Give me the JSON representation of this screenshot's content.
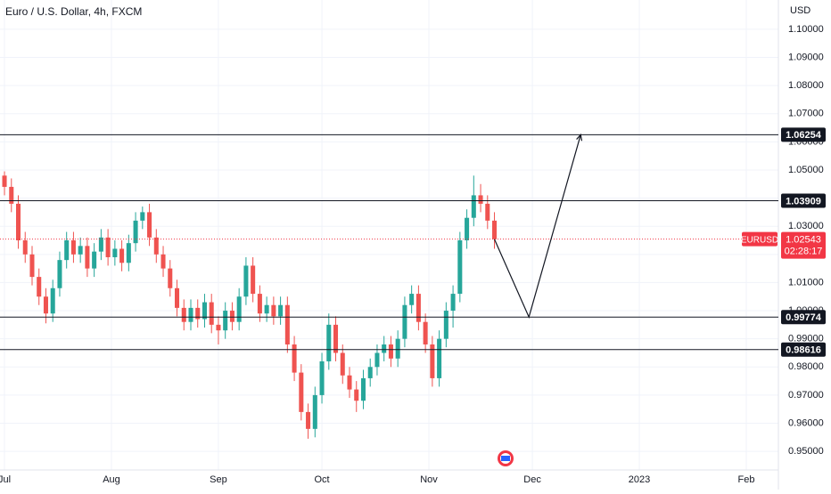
{
  "chart_data": {
    "type": "candlestick",
    "title": "Euro / U.S. Dollar, 4h, FXCM",
    "currency": "USD",
    "symbol": "EURUSD",
    "countdown": "02:28:17",
    "last_price": 1.02543,
    "up_color": "#26a69a",
    "down_color": "#ef5350",
    "grid": true,
    "xlim": [
      -1.3,
      224.3
    ],
    "ylim": [
      0.9434,
      1.1104
    ],
    "xticks": [
      {
        "value": 0,
        "label": "Jul"
      },
      {
        "value": 31,
        "label": "Aug"
      },
      {
        "value": 62,
        "label": "Sep"
      },
      {
        "value": 92,
        "label": "Oct"
      },
      {
        "value": 123,
        "label": "Nov"
      },
      {
        "value": 153,
        "label": "Dec"
      },
      {
        "value": 184,
        "label": "2023"
      },
      {
        "value": 215,
        "label": "Feb"
      }
    ],
    "yticks": [
      {
        "value": 0.95,
        "label": "0.95000"
      },
      {
        "value": 0.96,
        "label": "0.96000"
      },
      {
        "value": 0.97,
        "label": "0.97000"
      },
      {
        "value": 0.98,
        "label": "0.98000"
      },
      {
        "value": 0.99,
        "label": "0.99000"
      },
      {
        "value": 1.0,
        "label": "1.00000"
      },
      {
        "value": 1.01,
        "label": "1.01000"
      },
      {
        "value": 1.02,
        "label": "1.02000"
      },
      {
        "value": 1.03,
        "label": "1.03000"
      },
      {
        "value": 1.04,
        "label": "1.04000"
      },
      {
        "value": 1.05,
        "label": "1.05000"
      },
      {
        "value": 1.06,
        "label": "1.06000"
      },
      {
        "value": 1.07,
        "label": "1.07000"
      },
      {
        "value": 1.08,
        "label": "1.08000"
      },
      {
        "value": 1.09,
        "label": "1.09000"
      },
      {
        "value": 1.1,
        "label": "1.10000"
      }
    ],
    "levels": [
      1.06254,
      1.03909,
      0.99774,
      0.98616
    ],
    "projection": {
      "x": [
        142,
        152,
        167
      ],
      "values": [
        1.0254,
        0.99774,
        1.06254
      ]
    },
    "x": [
      0,
      2,
      4,
      6,
      8,
      10,
      12,
      14,
      16,
      18,
      20,
      22,
      24,
      26,
      28,
      30,
      32,
      34,
      36,
      38,
      40,
      42,
      44,
      46,
      48,
      50,
      52,
      54,
      56,
      58,
      60,
      62,
      64,
      66,
      68,
      70,
      72,
      74,
      76,
      78,
      80,
      82,
      84,
      86,
      88,
      90,
      92,
      94,
      96,
      98,
      100,
      102,
      104,
      106,
      108,
      110,
      112,
      114,
      116,
      118,
      120,
      122,
      124,
      126,
      128,
      130,
      132,
      134,
      136,
      138,
      140,
      142
    ],
    "open": [
      1.048,
      1.044,
      1.038,
      1.025,
      1.02,
      1.012,
      1.005,
      0.999,
      1.008,
      1.018,
      1.025,
      1.02,
      1.023,
      1.015,
      1.021,
      1.026,
      1.019,
      1.022,
      1.017,
      1.024,
      1.032,
      1.035,
      1.026,
      1.02,
      1.015,
      1.008,
      1.001,
      0.996,
      1.001,
      0.997,
      1.003,
      0.995,
      0.993,
      1.0,
      0.996,
      1.005,
      1.016,
      1.006,
      0.999,
      1.002,
      0.998,
      1.002,
      0.988,
      0.978,
      0.964,
      0.958,
      0.97,
      0.982,
      0.995,
      0.985,
      0.977,
      0.972,
      0.968,
      0.976,
      0.98,
      0.985,
      0.988,
      0.983,
      0.99,
      1.002,
      1.006,
      0.996,
      0.988,
      0.976,
      0.99,
      1.0,
      1.006,
      1.025,
      1.033,
      1.041,
      1.038,
      1.032
    ],
    "high": [
      1.0495,
      1.047,
      1.041,
      1.028,
      1.023,
      1.015,
      1.008,
      1.011,
      1.021,
      1.028,
      1.028,
      1.026,
      1.026,
      1.024,
      1.029,
      1.029,
      1.025,
      1.025,
      1.027,
      1.035,
      1.037,
      1.038,
      1.029,
      1.023,
      1.018,
      1.011,
      1.004,
      1.004,
      1.004,
      1.006,
      1.006,
      0.998,
      1.003,
      1.003,
      1.008,
      1.019,
      1.019,
      1.009,
      1.005,
      1.005,
      1.005,
      1.005,
      0.991,
      0.981,
      0.967,
      0.973,
      0.985,
      0.999,
      0.998,
      0.988,
      0.98,
      0.975,
      0.979,
      0.983,
      0.988,
      0.991,
      0.991,
      0.993,
      1.005,
      1.009,
      1.009,
      0.999,
      0.991,
      0.993,
      1.003,
      1.009,
      1.028,
      1.036,
      1.048,
      1.045,
      1.041,
      1.035
    ],
    "low": [
      1.041,
      1.035,
      1.022,
      1.017,
      1.009,
      1.002,
      0.9955,
      0.996,
      1.005,
      1.015,
      1.017,
      1.017,
      1.012,
      1.012,
      1.018,
      1.016,
      1.016,
      1.014,
      1.014,
      1.021,
      1.029,
      1.023,
      1.017,
      1.012,
      1.005,
      0.998,
      0.993,
      0.993,
      0.994,
      0.994,
      0.992,
      0.988,
      0.99,
      0.993,
      0.993,
      1.002,
      1.003,
      0.996,
      0.996,
      0.995,
      0.995,
      0.985,
      0.975,
      0.961,
      0.9545,
      0.955,
      0.967,
      0.979,
      0.982,
      0.974,
      0.969,
      0.964,
      0.965,
      0.973,
      0.977,
      0.982,
      0.98,
      0.98,
      0.987,
      0.999,
      0.993,
      0.985,
      0.973,
      0.973,
      0.987,
      0.994,
      1.003,
      1.022,
      1.03,
      1.035,
      1.029,
      1.022
    ],
    "close": [
      1.044,
      1.038,
      1.025,
      1.02,
      1.012,
      1.005,
      0.999,
      1.008,
      1.018,
      1.025,
      1.02,
      1.023,
      1.015,
      1.021,
      1.026,
      1.019,
      1.022,
      1.017,
      1.024,
      1.032,
      1.035,
      1.026,
      1.02,
      1.015,
      1.008,
      1.001,
      0.996,
      1.001,
      0.997,
      1.003,
      0.995,
      0.993,
      1.0,
      0.996,
      1.005,
      1.016,
      1.006,
      0.999,
      1.002,
      0.998,
      1.002,
      0.988,
      0.978,
      0.964,
      0.958,
      0.97,
      0.982,
      0.995,
      0.985,
      0.977,
      0.972,
      0.968,
      0.976,
      0.98,
      0.985,
      0.988,
      0.983,
      0.99,
      1.002,
      1.006,
      0.996,
      0.988,
      0.976,
      0.99,
      1.0,
      1.006,
      1.025,
      1.033,
      1.041,
      1.038,
      1.032,
      1.0254
    ]
  }
}
